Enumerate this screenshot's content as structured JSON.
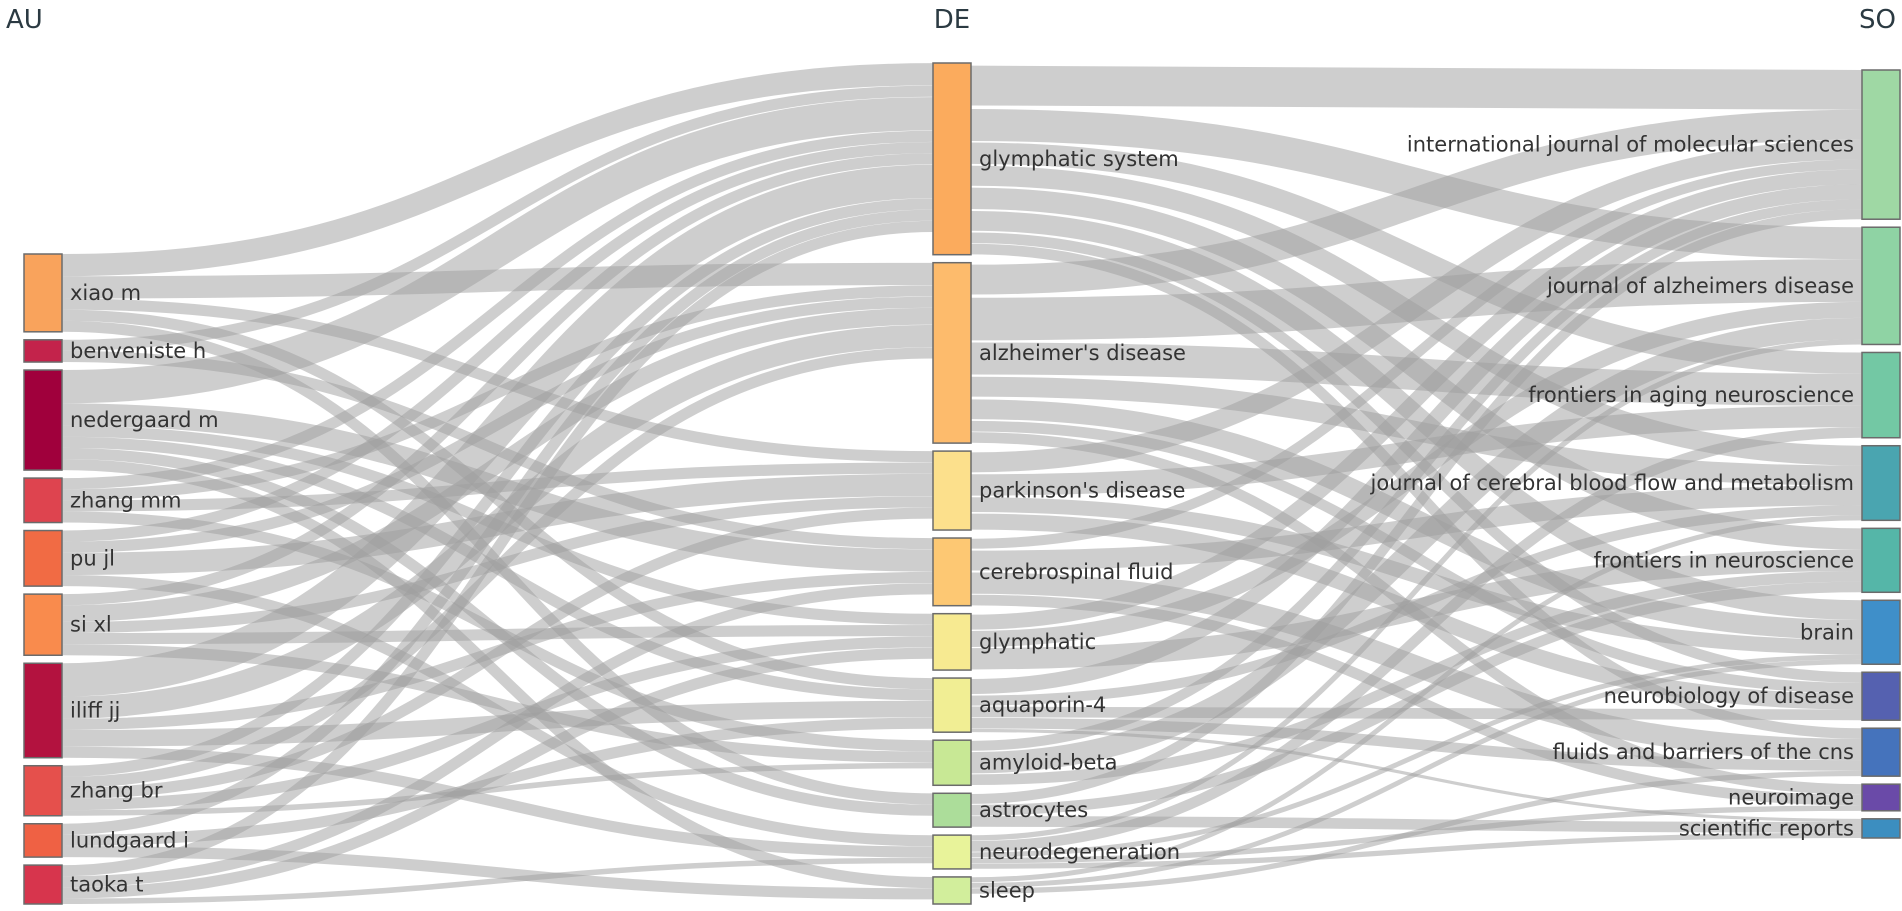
{
  "columns": [
    {
      "id": "AU",
      "title": "AU"
    },
    {
      "id": "DE",
      "title": "DE"
    },
    {
      "id": "SO",
      "title": "SO"
    }
  ],
  "nodes": [
    {
      "id": "xiao_m",
      "col": "AU",
      "label": "xiao m",
      "value": 7,
      "color": "#f9a35c"
    },
    {
      "id": "benveniste_h",
      "col": "AU",
      "label": "benveniste h",
      "value": 2,
      "color": "#c3234b"
    },
    {
      "id": "nedergaard_m",
      "col": "AU",
      "label": "nedergaard m",
      "value": 9,
      "color": "#a0003c"
    },
    {
      "id": "zhang_mm",
      "col": "AU",
      "label": "zhang mm",
      "value": 4,
      "color": "#de444f"
    },
    {
      "id": "pu_jl",
      "col": "AU",
      "label": "pu jl",
      "value": 5,
      "color": "#f16b44"
    },
    {
      "id": "si_xl",
      "col": "AU",
      "label": "si xl",
      "value": 5.5,
      "color": "#f98b4d"
    },
    {
      "id": "iliff_jj",
      "col": "AU",
      "label": "iliff jj",
      "value": 8.5,
      "color": "#b3123f"
    },
    {
      "id": "zhang_br",
      "col": "AU",
      "label": "zhang br",
      "value": 4.5,
      "color": "#e5504c"
    },
    {
      "id": "lundgaard_i",
      "col": "AU",
      "label": "lundgaard i",
      "value": 3,
      "color": "#ef6144"
    },
    {
      "id": "taoka_t",
      "col": "AU",
      "label": "taoka t",
      "value": 3.5,
      "color": "#d7354d"
    },
    {
      "id": "glymphatic_system",
      "col": "DE",
      "label": "glymphatic system",
      "value": 17,
      "color": "#fbab5d"
    },
    {
      "id": "alzheimers_disease",
      "col": "DE",
      "label": "alzheimer's disease",
      "value": 16,
      "color": "#fdbb6c"
    },
    {
      "id": "parkinsons_disease",
      "col": "DE",
      "label": "parkinson's disease",
      "value": 7,
      "color": "#fce08c"
    },
    {
      "id": "cerebrospinal_fluid",
      "col": "DE",
      "label": "cerebrospinal fluid",
      "value": 6,
      "color": "#fdc873"
    },
    {
      "id": "glymphatic",
      "col": "DE",
      "label": "glymphatic",
      "value": 5,
      "color": "#f7ea91"
    },
    {
      "id": "aquaporin_4",
      "col": "DE",
      "label": "aquaporin-4",
      "value": 4.8,
      "color": "#f1ee94"
    },
    {
      "id": "amyloid_beta",
      "col": "DE",
      "label": "amyloid-beta",
      "value": 4,
      "color": "#c8e895"
    },
    {
      "id": "astrocytes",
      "col": "DE",
      "label": "astrocytes",
      "value": 3,
      "color": "#acdd9a"
    },
    {
      "id": "neurodegeneration",
      "col": "DE",
      "label": "neurodegeneration",
      "value": 3,
      "color": "#e8f39a"
    },
    {
      "id": "sleep",
      "col": "DE",
      "label": "sleep",
      "value": 2.4,
      "color": "#d2ee9c"
    },
    {
      "id": "ijms",
      "col": "SO",
      "label": "international journal of molecular sciences",
      "value": 14,
      "color": "#9fd8a4"
    },
    {
      "id": "jad",
      "col": "SO",
      "label": "journal of alzheimers disease",
      "value": 11,
      "color": "#8fd3a4"
    },
    {
      "id": "fans",
      "col": "SO",
      "label": "frontiers in aging neuroscience",
      "value": 8,
      "color": "#73c8a4"
    },
    {
      "id": "jcbfm",
      "col": "SO",
      "label": "journal of cerebral blood flow and metabolism",
      "value": 7,
      "color": "#4aa5b0"
    },
    {
      "id": "fins",
      "col": "SO",
      "label": "frontiers in neuroscience",
      "value": 6,
      "color": "#55b6a8"
    },
    {
      "id": "brain",
      "col": "SO",
      "label": "brain",
      "value": 6,
      "color": "#3f8fc9"
    },
    {
      "id": "nbd",
      "col": "SO",
      "label": "neurobiology of disease",
      "value": 4.5,
      "color": "#5561b0"
    },
    {
      "id": "fbcns",
      "col": "SO",
      "label": "fluids and barriers of the cns",
      "value": 4.5,
      "color": "#4573bc"
    },
    {
      "id": "neuroimage",
      "col": "SO",
      "label": "neuroimage",
      "value": 2.5,
      "color": "#6a4aa8"
    },
    {
      "id": "scirep",
      "col": "SO",
      "label": "scientific reports",
      "value": 1.8,
      "color": "#3c8ec0"
    }
  ],
  "links": [
    {
      "source": "xiao_m",
      "target": "glymphatic_system",
      "value": 2
    },
    {
      "source": "xiao_m",
      "target": "alzheimers_disease",
      "value": 2
    },
    {
      "source": "xiao_m",
      "target": "parkinsons_disease",
      "value": 1
    },
    {
      "source": "xiao_m",
      "target": "aquaporin_4",
      "value": 1
    },
    {
      "source": "xiao_m",
      "target": "astrocytes",
      "value": 1
    },
    {
      "source": "benveniste_h",
      "target": "glymphatic_system",
      "value": 1
    },
    {
      "source": "benveniste_h",
      "target": "cerebrospinal_fluid",
      "value": 1
    },
    {
      "source": "nedergaard_m",
      "target": "glymphatic_system",
      "value": 3
    },
    {
      "source": "nedergaard_m",
      "target": "cerebrospinal_fluid",
      "value": 2
    },
    {
      "source": "nedergaard_m",
      "target": "glymphatic",
      "value": 1
    },
    {
      "source": "nedergaard_m",
      "target": "aquaporin_4",
      "value": 1
    },
    {
      "source": "nedergaard_m",
      "target": "astrocytes",
      "value": 1
    },
    {
      "source": "nedergaard_m",
      "target": "sleep",
      "value": 1
    },
    {
      "source": "zhang_mm",
      "target": "glymphatic_system",
      "value": 1
    },
    {
      "source": "zhang_mm",
      "target": "alzheimers_disease",
      "value": 1
    },
    {
      "source": "zhang_mm",
      "target": "parkinsons_disease",
      "value": 1
    },
    {
      "source": "zhang_mm",
      "target": "amyloid_beta",
      "value": 1
    },
    {
      "source": "pu_jl",
      "target": "glymphatic_system",
      "value": 1
    },
    {
      "source": "pu_jl",
      "target": "alzheimers_disease",
      "value": 1
    },
    {
      "source": "pu_jl",
      "target": "parkinsons_disease",
      "value": 2
    },
    {
      "source": "pu_jl",
      "target": "neurodegeneration",
      "value": 1
    },
    {
      "source": "si_xl",
      "target": "glymphatic_system",
      "value": 1
    },
    {
      "source": "si_xl",
      "target": "alzheimers_disease",
      "value": 1.5
    },
    {
      "source": "si_xl",
      "target": "parkinsons_disease",
      "value": 1
    },
    {
      "source": "si_xl",
      "target": "glymphatic",
      "value": 1
    },
    {
      "source": "si_xl",
      "target": "amyloid_beta",
      "value": 1
    },
    {
      "source": "iliff_jj",
      "target": "glymphatic_system",
      "value": 3
    },
    {
      "source": "iliff_jj",
      "target": "alzheimers_disease",
      "value": 2
    },
    {
      "source": "iliff_jj",
      "target": "cerebrospinal_fluid",
      "value": 1
    },
    {
      "source": "iliff_jj",
      "target": "aquaporin_4",
      "value": 1.5
    },
    {
      "source": "iliff_jj",
      "target": "neurodegeneration",
      "value": 1
    },
    {
      "source": "zhang_br",
      "target": "glymphatic_system",
      "value": 1
    },
    {
      "source": "zhang_br",
      "target": "alzheimers_disease",
      "value": 1
    },
    {
      "source": "zhang_br",
      "target": "parkinsons_disease",
      "value": 1
    },
    {
      "source": "zhang_br",
      "target": "glymphatic",
      "value": 1
    },
    {
      "source": "zhang_br",
      "target": "amyloid_beta",
      "value": 0.5
    },
    {
      "source": "lundgaard_i",
      "target": "glymphatic_system",
      "value": 1
    },
    {
      "source": "lundgaard_i",
      "target": "aquaporin_4",
      "value": 1
    },
    {
      "source": "lundgaard_i",
      "target": "sleep",
      "value": 1
    },
    {
      "source": "taoka_t",
      "target": "glymphatic_system",
      "value": 1
    },
    {
      "source": "taoka_t",
      "target": "cerebrospinal_fluid",
      "value": 1
    },
    {
      "source": "taoka_t",
      "target": "glymphatic",
      "value": 1
    },
    {
      "source": "taoka_t",
      "target": "neurodegeneration",
      "value": 0.5
    },
    {
      "source": "glymphatic_system",
      "target": "ijms",
      "value": 4
    },
    {
      "source": "glymphatic_system",
      "target": "jad",
      "value": 3
    },
    {
      "source": "glymphatic_system",
      "target": "fans",
      "value": 2
    },
    {
      "source": "glymphatic_system",
      "target": "jcbfm",
      "value": 2
    },
    {
      "source": "glymphatic_system",
      "target": "fins",
      "value": 2
    },
    {
      "source": "glymphatic_system",
      "target": "brain",
      "value": 2
    },
    {
      "source": "glymphatic_system",
      "target": "nbd",
      "value": 1
    },
    {
      "source": "glymphatic_system",
      "target": "fbcns",
      "value": 1
    },
    {
      "source": "alzheimers_disease",
      "target": "ijms",
      "value": 3
    },
    {
      "source": "alzheimers_disease",
      "target": "jad",
      "value": 4
    },
    {
      "source": "alzheimers_disease",
      "target": "fans",
      "value": 3
    },
    {
      "source": "alzheimers_disease",
      "target": "jcbfm",
      "value": 2
    },
    {
      "source": "alzheimers_disease",
      "target": "brain",
      "value": 2
    },
    {
      "source": "alzheimers_disease",
      "target": "nbd",
      "value": 1
    },
    {
      "source": "alzheimers_disease",
      "target": "neuroimage",
      "value": 1
    },
    {
      "source": "parkinsons_disease",
      "target": "ijms",
      "value": 2
    },
    {
      "source": "parkinsons_disease",
      "target": "fans",
      "value": 2
    },
    {
      "source": "parkinsons_disease",
      "target": "nbd",
      "value": 1.5
    },
    {
      "source": "parkinsons_disease",
      "target": "brain",
      "value": 1.5
    },
    {
      "source": "cerebrospinal_fluid",
      "target": "jcbfm",
      "value": 2
    },
    {
      "source": "cerebrospinal_fluid",
      "target": "fbcns",
      "value": 2
    },
    {
      "source": "cerebrospinal_fluid",
      "target": "neuroimage",
      "value": 1
    },
    {
      "source": "cerebrospinal_fluid",
      "target": "ijms",
      "value": 1
    },
    {
      "source": "glymphatic",
      "target": "fins",
      "value": 2
    },
    {
      "source": "glymphatic",
      "target": "ijms",
      "value": 1.5
    },
    {
      "source": "glymphatic",
      "target": "jad",
      "value": 1.5
    },
    {
      "source": "aquaporin_4",
      "target": "ijms",
      "value": 1.5
    },
    {
      "source": "aquaporin_4",
      "target": "jcbfm",
      "value": 1
    },
    {
      "source": "aquaporin_4",
      "target": "fbcns",
      "value": 1
    },
    {
      "source": "aquaporin_4",
      "target": "nbd",
      "value": 1
    },
    {
      "source": "aquaporin_4",
      "target": "scirep",
      "value": 0.3
    },
    {
      "source": "amyloid_beta",
      "target": "jad",
      "value": 2
    },
    {
      "source": "amyloid_beta",
      "target": "ijms",
      "value": 1
    },
    {
      "source": "amyloid_beta",
      "target": "fins",
      "value": 1
    },
    {
      "source": "astrocytes",
      "target": "ijms",
      "value": 1
    },
    {
      "source": "astrocytes",
      "target": "fins",
      "value": 1
    },
    {
      "source": "astrocytes",
      "target": "scirep",
      "value": 1
    },
    {
      "source": "neurodegeneration",
      "target": "fans",
      "value": 1
    },
    {
      "source": "neurodegeneration",
      "target": "brain",
      "value": 0.5
    },
    {
      "source": "neurodegeneration",
      "target": "neuroimage",
      "value": 0.5
    },
    {
      "source": "neurodegeneration",
      "target": "jad",
      "value": 0.5
    },
    {
      "source": "neurodegeneration",
      "target": "scirep",
      "value": 0.5
    },
    {
      "source": "sleep",
      "target": "fbcns",
      "value": 0.5
    },
    {
      "source": "sleep",
      "target": "jcbfm",
      "value": 0.5
    },
    {
      "source": "sleep",
      "target": "brain",
      "value": 0.5
    }
  ]
}
